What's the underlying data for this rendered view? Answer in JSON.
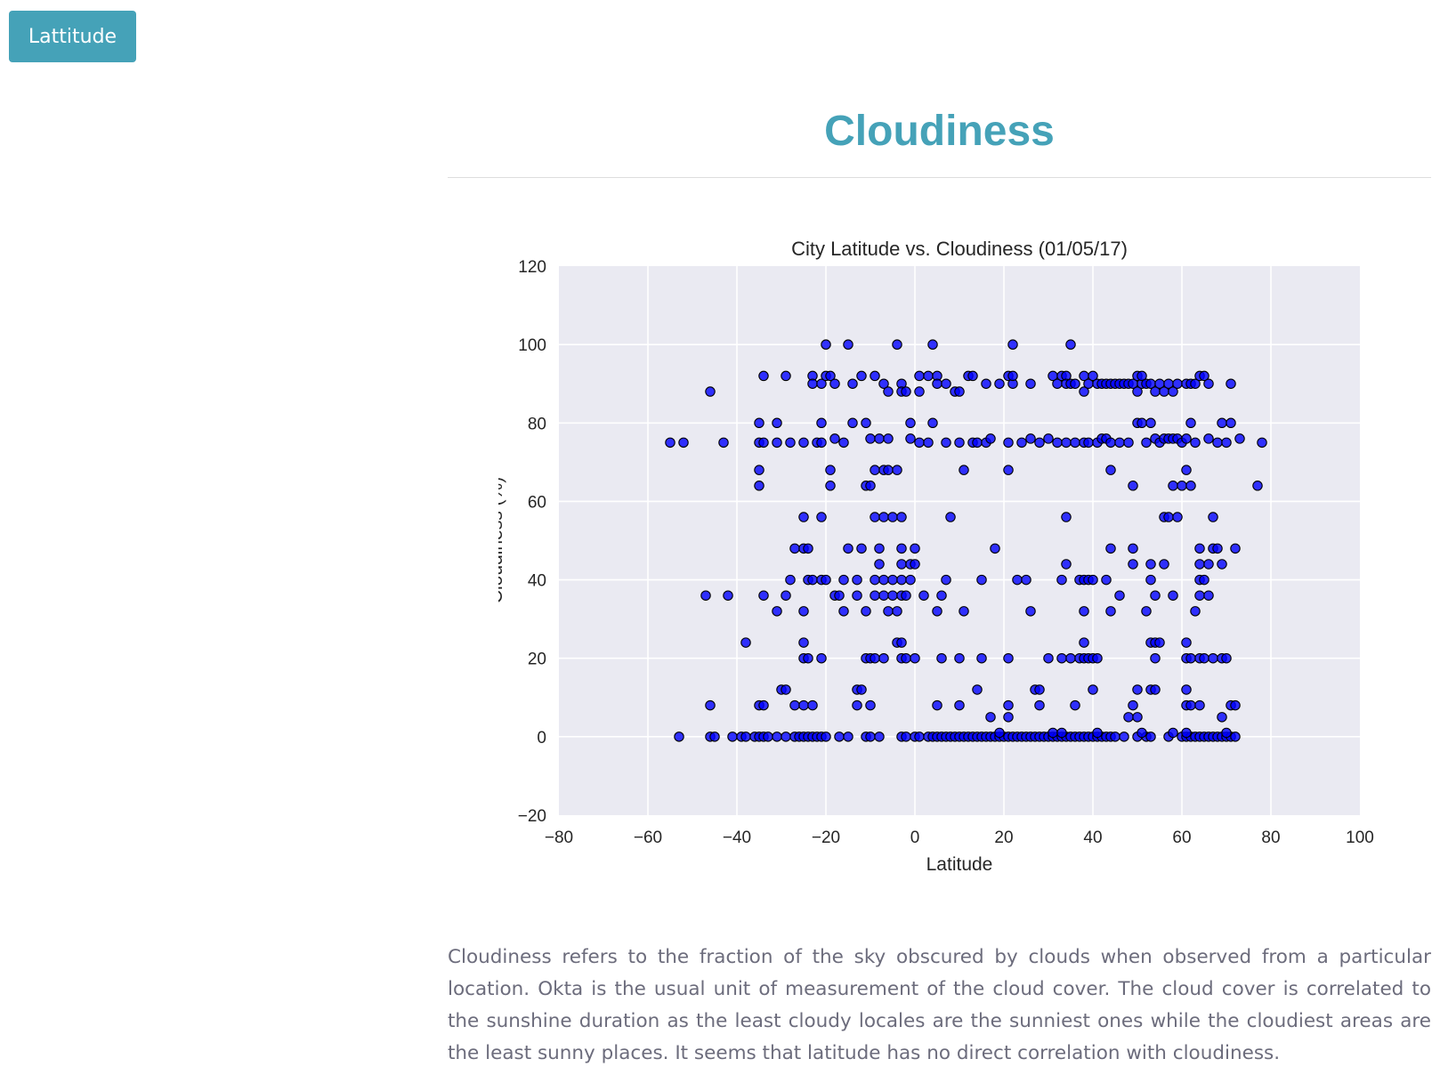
{
  "nav": {
    "button_label": "Lattitude"
  },
  "page": {
    "title": "Cloudiness",
    "description": "Cloudiness refers to the fraction of the sky obscured by clouds when observed from a particular location. Okta is the usual unit of measurement of the cloud cover. The cloud cover is correlated to the sunshine duration as the least cloudy locales are the sunniest ones while the cloudiest areas are the least sunny places. It seems that latitude has no direct correlation with cloudiness."
  },
  "colors": {
    "accent": "#45a2b8",
    "plot_background": "#eaeaf2",
    "marker": "#0000ff"
  },
  "chart_data": {
    "type": "scatter",
    "title": "City Latitude vs. Cloudiness (01/05/17)",
    "xlabel": "Latitude",
    "ylabel": "Cloudiness (%)",
    "xlim": [
      -80,
      100
    ],
    "ylim": [
      -20,
      120
    ],
    "xticks": [
      -80,
      -60,
      -40,
      -20,
      0,
      20,
      40,
      60,
      80,
      100
    ],
    "yticks": [
      -20,
      0,
      20,
      40,
      60,
      80,
      100,
      120
    ],
    "grid": true,
    "points": [
      [
        -20,
        100
      ],
      [
        -15,
        100
      ],
      [
        -4,
        100
      ],
      [
        4,
        100
      ],
      [
        22,
        100
      ],
      [
        35,
        100
      ],
      [
        -46,
        88
      ],
      [
        -34,
        92
      ],
      [
        -29,
        92
      ],
      [
        -23,
        92
      ],
      [
        -23,
        90
      ],
      [
        -21,
        90
      ],
      [
        -20,
        92
      ],
      [
        -19,
        92
      ],
      [
        -18,
        90
      ],
      [
        -14,
        90
      ],
      [
        -12,
        92
      ],
      [
        -9,
        92
      ],
      [
        -7,
        90
      ],
      [
        -6,
        88
      ],
      [
        -3,
        90
      ],
      [
        -3,
        88
      ],
      [
        -2,
        88
      ],
      [
        1,
        88
      ],
      [
        1,
        92
      ],
      [
        3,
        92
      ],
      [
        5,
        92
      ],
      [
        5,
        90
      ],
      [
        7,
        90
      ],
      [
        9,
        88
      ],
      [
        10,
        88
      ],
      [
        12,
        92
      ],
      [
        13,
        92
      ],
      [
        16,
        90
      ],
      [
        19,
        90
      ],
      [
        21,
        92
      ],
      [
        22,
        90
      ],
      [
        22,
        92
      ],
      [
        26,
        90
      ],
      [
        31,
        92
      ],
      [
        32,
        90
      ],
      [
        33,
        92
      ],
      [
        34,
        92
      ],
      [
        34,
        90
      ],
      [
        35,
        90
      ],
      [
        36,
        90
      ],
      [
        38,
        92
      ],
      [
        38,
        88
      ],
      [
        39,
        90
      ],
      [
        40,
        92
      ],
      [
        41,
        90
      ],
      [
        42,
        90
      ],
      [
        43,
        90
      ],
      [
        44,
        90
      ],
      [
        45,
        90
      ],
      [
        46,
        90
      ],
      [
        47,
        90
      ],
      [
        48,
        90
      ],
      [
        49,
        90
      ],
      [
        50,
        92
      ],
      [
        50,
        88
      ],
      [
        51,
        90
      ],
      [
        51,
        92
      ],
      [
        52,
        90
      ],
      [
        53,
        90
      ],
      [
        54,
        88
      ],
      [
        55,
        90
      ],
      [
        56,
        88
      ],
      [
        57,
        90
      ],
      [
        58,
        88
      ],
      [
        59,
        90
      ],
      [
        61,
        90
      ],
      [
        62,
        90
      ],
      [
        63,
        90
      ],
      [
        64,
        92
      ],
      [
        65,
        92
      ],
      [
        66,
        90
      ],
      [
        71,
        90
      ],
      [
        -55,
        75
      ],
      [
        -52,
        75
      ],
      [
        -43,
        75
      ],
      [
        -35,
        75
      ],
      [
        -35,
        80
      ],
      [
        -34,
        75
      ],
      [
        -31,
        80
      ],
      [
        -31,
        75
      ],
      [
        -28,
        75
      ],
      [
        -25,
        75
      ],
      [
        -22,
        75
      ],
      [
        -21,
        80
      ],
      [
        -21,
        75
      ],
      [
        -18,
        76
      ],
      [
        -16,
        75
      ],
      [
        -14,
        80
      ],
      [
        -11,
        80
      ],
      [
        -10,
        76
      ],
      [
        -8,
        76
      ],
      [
        -6,
        76
      ],
      [
        -1,
        80
      ],
      [
        -1,
        76
      ],
      [
        1,
        75
      ],
      [
        3,
        75
      ],
      [
        4,
        80
      ],
      [
        7,
        75
      ],
      [
        10,
        75
      ],
      [
        13,
        75
      ],
      [
        14,
        75
      ],
      [
        16,
        75
      ],
      [
        17,
        76
      ],
      [
        21,
        75
      ],
      [
        24,
        75
      ],
      [
        26,
        76
      ],
      [
        28,
        75
      ],
      [
        30,
        76
      ],
      [
        32,
        75
      ],
      [
        34,
        75
      ],
      [
        36,
        75
      ],
      [
        38,
        75
      ],
      [
        39,
        75
      ],
      [
        41,
        75
      ],
      [
        42,
        76
      ],
      [
        43,
        76
      ],
      [
        44,
        75
      ],
      [
        46,
        75
      ],
      [
        48,
        75
      ],
      [
        50,
        80
      ],
      [
        51,
        80
      ],
      [
        52,
        75
      ],
      [
        53,
        80
      ],
      [
        54,
        76
      ],
      [
        55,
        75
      ],
      [
        56,
        76
      ],
      [
        57,
        76
      ],
      [
        58,
        76
      ],
      [
        59,
        76
      ],
      [
        60,
        75
      ],
      [
        61,
        76
      ],
      [
        62,
        80
      ],
      [
        63,
        75
      ],
      [
        66,
        76
      ],
      [
        68,
        75
      ],
      [
        69,
        80
      ],
      [
        70,
        75
      ],
      [
        71,
        80
      ],
      [
        73,
        76
      ],
      [
        78,
        75
      ],
      [
        -35,
        68
      ],
      [
        -35,
        64
      ],
      [
        -19,
        68
      ],
      [
        -19,
        64
      ],
      [
        -11,
        64
      ],
      [
        -10,
        64
      ],
      [
        -9,
        68
      ],
      [
        -7,
        68
      ],
      [
        -6,
        68
      ],
      [
        -4,
        68
      ],
      [
        11,
        68
      ],
      [
        21,
        68
      ],
      [
        44,
        68
      ],
      [
        49,
        64
      ],
      [
        58,
        64
      ],
      [
        60,
        64
      ],
      [
        61,
        68
      ],
      [
        62,
        64
      ],
      [
        77,
        64
      ],
      [
        -25,
        56
      ],
      [
        -21,
        56
      ],
      [
        -9,
        56
      ],
      [
        -7,
        56
      ],
      [
        -5,
        56
      ],
      [
        -3,
        56
      ],
      [
        8,
        56
      ],
      [
        34,
        56
      ],
      [
        56,
        56
      ],
      [
        57,
        56
      ],
      [
        59,
        56
      ],
      [
        67,
        56
      ],
      [
        -27,
        48
      ],
      [
        -25,
        48
      ],
      [
        -24,
        48
      ],
      [
        -15,
        48
      ],
      [
        -12,
        48
      ],
      [
        -8,
        48
      ],
      [
        -3,
        48
      ],
      [
        0,
        48
      ],
      [
        18,
        48
      ],
      [
        44,
        48
      ],
      [
        49,
        48
      ],
      [
        64,
        48
      ],
      [
        67,
        48
      ],
      [
        68,
        48
      ],
      [
        72,
        48
      ],
      [
        -8,
        44
      ],
      [
        -3,
        44
      ],
      [
        -1,
        44
      ],
      [
        0,
        44
      ],
      [
        34,
        44
      ],
      [
        49,
        44
      ],
      [
        53,
        44
      ],
      [
        56,
        44
      ],
      [
        64,
        44
      ],
      [
        66,
        44
      ],
      [
        69,
        44
      ],
      [
        -28,
        40
      ],
      [
        -24,
        40
      ],
      [
        -23,
        40
      ],
      [
        -21,
        40
      ],
      [
        -20,
        40
      ],
      [
        -16,
        40
      ],
      [
        -13,
        40
      ],
      [
        -9,
        40
      ],
      [
        -7,
        40
      ],
      [
        -5,
        40
      ],
      [
        -3,
        40
      ],
      [
        -1,
        40
      ],
      [
        7,
        40
      ],
      [
        15,
        40
      ],
      [
        23,
        40
      ],
      [
        25,
        40
      ],
      [
        33,
        40
      ],
      [
        37,
        40
      ],
      [
        38,
        40
      ],
      [
        39,
        40
      ],
      [
        40,
        40
      ],
      [
        43,
        40
      ],
      [
        53,
        40
      ],
      [
        64,
        40
      ],
      [
        65,
        40
      ],
      [
        -47,
        36
      ],
      [
        -42,
        36
      ],
      [
        -34,
        36
      ],
      [
        -29,
        36
      ],
      [
        -18,
        36
      ],
      [
        -17,
        36
      ],
      [
        -13,
        36
      ],
      [
        -9,
        36
      ],
      [
        -7,
        36
      ],
      [
        -5,
        36
      ],
      [
        -3,
        36
      ],
      [
        -2,
        36
      ],
      [
        2,
        36
      ],
      [
        6,
        36
      ],
      [
        46,
        36
      ],
      [
        54,
        36
      ],
      [
        58,
        36
      ],
      [
        64,
        36
      ],
      [
        66,
        36
      ],
      [
        -31,
        32
      ],
      [
        -25,
        32
      ],
      [
        -16,
        32
      ],
      [
        -11,
        32
      ],
      [
        -6,
        32
      ],
      [
        -4,
        32
      ],
      [
        5,
        32
      ],
      [
        11,
        32
      ],
      [
        26,
        32
      ],
      [
        38,
        32
      ],
      [
        44,
        32
      ],
      [
        52,
        32
      ],
      [
        63,
        32
      ],
      [
        -38,
        24
      ],
      [
        -25,
        24
      ],
      [
        -4,
        24
      ],
      [
        -3,
        24
      ],
      [
        38,
        24
      ],
      [
        53,
        24
      ],
      [
        54,
        24
      ],
      [
        55,
        24
      ],
      [
        61,
        24
      ],
      [
        -25,
        20
      ],
      [
        -24,
        20
      ],
      [
        -21,
        20
      ],
      [
        -11,
        20
      ],
      [
        -10,
        20
      ],
      [
        -9,
        20
      ],
      [
        -7,
        20
      ],
      [
        -3,
        20
      ],
      [
        -2,
        20
      ],
      [
        0,
        20
      ],
      [
        6,
        20
      ],
      [
        10,
        20
      ],
      [
        15,
        20
      ],
      [
        21,
        20
      ],
      [
        30,
        20
      ],
      [
        33,
        20
      ],
      [
        35,
        20
      ],
      [
        37,
        20
      ],
      [
        38,
        20
      ],
      [
        39,
        20
      ],
      [
        40,
        20
      ],
      [
        41,
        20
      ],
      [
        54,
        20
      ],
      [
        61,
        20
      ],
      [
        62,
        20
      ],
      [
        64,
        20
      ],
      [
        65,
        20
      ],
      [
        67,
        20
      ],
      [
        69,
        20
      ],
      [
        70,
        20
      ],
      [
        -30,
        12
      ],
      [
        -29,
        12
      ],
      [
        -13,
        12
      ],
      [
        -12,
        12
      ],
      [
        14,
        12
      ],
      [
        27,
        12
      ],
      [
        28,
        12
      ],
      [
        40,
        12
      ],
      [
        50,
        12
      ],
      [
        53,
        12
      ],
      [
        54,
        12
      ],
      [
        61,
        12
      ],
      [
        -46,
        8
      ],
      [
        -35,
        8
      ],
      [
        -34,
        8
      ],
      [
        -27,
        8
      ],
      [
        -25,
        8
      ],
      [
        -23,
        8
      ],
      [
        -13,
        8
      ],
      [
        -10,
        8
      ],
      [
        5,
        8
      ],
      [
        10,
        8
      ],
      [
        21,
        8
      ],
      [
        28,
        8
      ],
      [
        36,
        8
      ],
      [
        49,
        8
      ],
      [
        61,
        8
      ],
      [
        62,
        8
      ],
      [
        64,
        8
      ],
      [
        71,
        8
      ],
      [
        72,
        8
      ],
      [
        17,
        5
      ],
      [
        21,
        5
      ],
      [
        48,
        5
      ],
      [
        50,
        5
      ],
      [
        69,
        5
      ],
      [
        -53,
        0
      ],
      [
        -46,
        0
      ],
      [
        -45,
        0
      ],
      [
        -41,
        0
      ],
      [
        -39,
        0
      ],
      [
        -38,
        0
      ],
      [
        -36,
        0
      ],
      [
        -35,
        0
      ],
      [
        -34,
        0
      ],
      [
        -33,
        0
      ],
      [
        -31,
        0
      ],
      [
        -29,
        0
      ],
      [
        -27,
        0
      ],
      [
        -26,
        0
      ],
      [
        -25,
        0
      ],
      [
        -24,
        0
      ],
      [
        -23,
        0
      ],
      [
        -22,
        0
      ],
      [
        -21,
        0
      ],
      [
        -20,
        0
      ],
      [
        -17,
        0
      ],
      [
        -15,
        0
      ],
      [
        -11,
        0
      ],
      [
        -10,
        0
      ],
      [
        -8,
        0
      ],
      [
        -3,
        0
      ],
      [
        -2,
        0
      ],
      [
        0,
        0
      ],
      [
        1,
        0
      ],
      [
        3,
        0
      ],
      [
        4,
        0
      ],
      [
        5,
        0
      ],
      [
        6,
        0
      ],
      [
        7,
        0
      ],
      [
        8,
        0
      ],
      [
        9,
        0
      ],
      [
        10,
        0
      ],
      [
        11,
        0
      ],
      [
        12,
        0
      ],
      [
        13,
        0
      ],
      [
        14,
        0
      ],
      [
        15,
        0
      ],
      [
        16,
        0
      ],
      [
        17,
        0
      ],
      [
        18,
        0
      ],
      [
        19,
        0
      ],
      [
        20,
        0
      ],
      [
        21,
        0
      ],
      [
        22,
        0
      ],
      [
        23,
        0
      ],
      [
        24,
        0
      ],
      [
        25,
        0
      ],
      [
        26,
        0
      ],
      [
        27,
        0
      ],
      [
        28,
        0
      ],
      [
        29,
        0
      ],
      [
        30,
        0
      ],
      [
        31,
        0
      ],
      [
        32,
        0
      ],
      [
        33,
        0
      ],
      [
        34,
        0
      ],
      [
        35,
        0
      ],
      [
        36,
        0
      ],
      [
        37,
        0
      ],
      [
        38,
        0
      ],
      [
        39,
        0
      ],
      [
        40,
        0
      ],
      [
        41,
        0
      ],
      [
        42,
        0
      ],
      [
        43,
        0
      ],
      [
        44,
        0
      ],
      [
        45,
        0
      ],
      [
        47,
        0
      ],
      [
        50,
        0
      ],
      [
        52,
        0
      ],
      [
        53,
        0
      ],
      [
        57,
        0
      ],
      [
        60,
        0
      ],
      [
        61,
        0
      ],
      [
        62,
        0
      ],
      [
        63,
        0
      ],
      [
        64,
        0
      ],
      [
        65,
        0
      ],
      [
        66,
        0
      ],
      [
        67,
        0
      ],
      [
        68,
        0
      ],
      [
        69,
        0
      ],
      [
        70,
        0
      ],
      [
        71,
        0
      ],
      [
        72,
        0
      ],
      [
        19,
        1
      ],
      [
        31,
        1
      ],
      [
        33,
        1
      ],
      [
        41,
        1
      ],
      [
        51,
        1
      ],
      [
        58,
        1
      ],
      [
        61,
        1
      ],
      [
        70,
        1
      ]
    ]
  }
}
